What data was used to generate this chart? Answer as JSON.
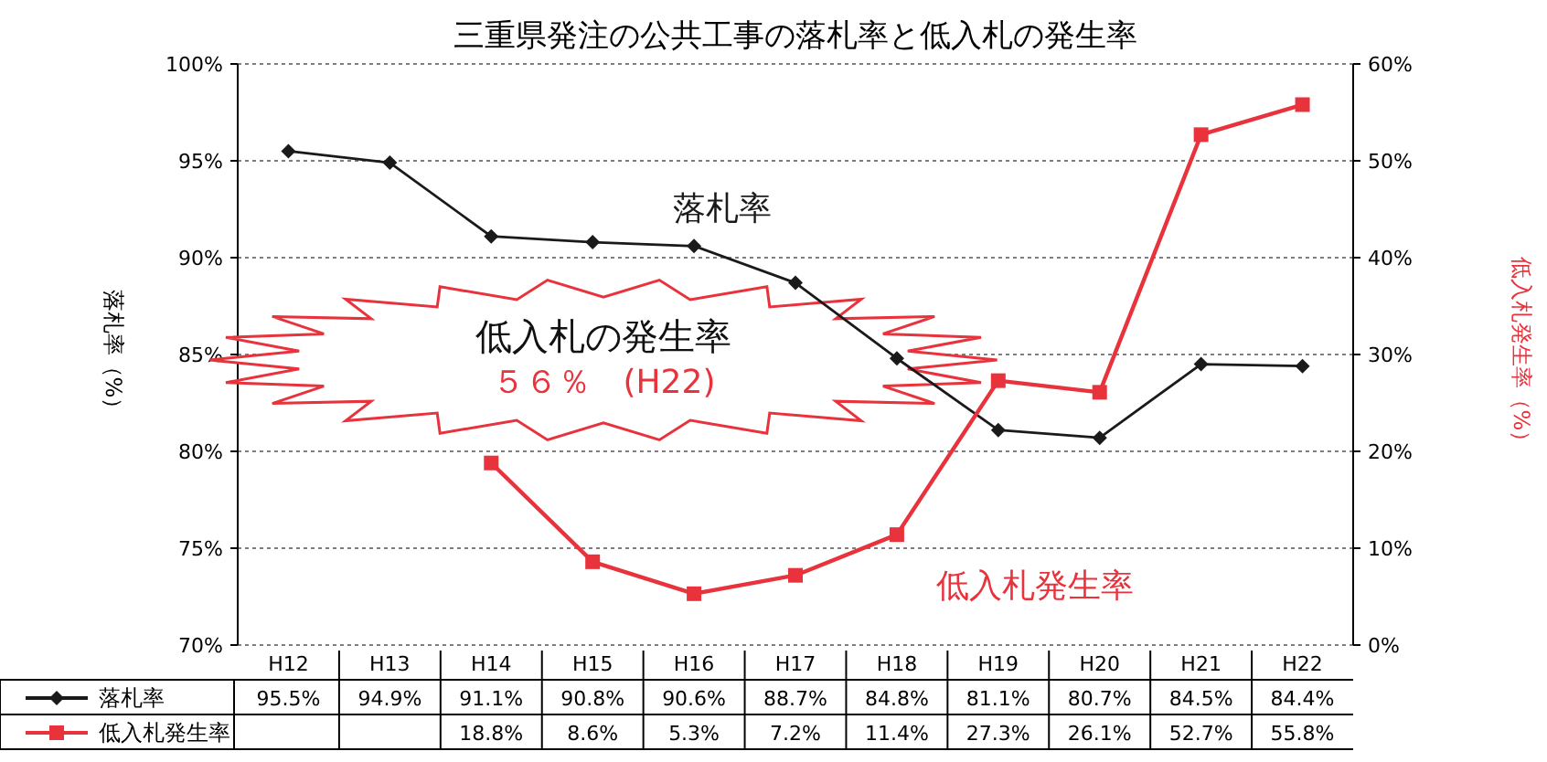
{
  "chart_data": {
    "type": "line",
    "title": "三重県発注の公共工事の落札率と低入札の発生率",
    "ylabel": "落札率（%）",
    "y2label": "低入札発生率（%）",
    "annotations": [
      "低入札の発生率",
      "５６％　(H22)"
    ],
    "categories": [
      "H12",
      "H13",
      "H14",
      "H15",
      "H16",
      "H17",
      "H18",
      "H19",
      "H20",
      "H21",
      "H22"
    ],
    "series": [
      {
        "name": "落札率",
        "color": "#1a1a1a",
        "marker": "diamond",
        "values": [
          95.5,
          94.9,
          91.1,
          90.8,
          90.6,
          88.7,
          84.8,
          81.1,
          80.7,
          84.5,
          84.4
        ],
        "value_labels": [
          "95.5%",
          "94.9%",
          "91.1%",
          "90.8%",
          "90.6%",
          "88.7%",
          "84.8%",
          "81.1%",
          "80.7%",
          "84.5%",
          "84.4%"
        ]
      },
      {
        "name": "低入札発生率",
        "color": "#e8323c",
        "marker": "square",
        "axis": "y2",
        "values": [
          null,
          null,
          18.8,
          8.6,
          5.3,
          7.2,
          11.4,
          27.3,
          26.1,
          52.7,
          55.8
        ],
        "value_labels": [
          null,
          null,
          "18.8%",
          "8.6%",
          "5.3%",
          "7.2%",
          "11.4%",
          "27.3%",
          "26.1%",
          "52.7%",
          "55.8%"
        ]
      }
    ],
    "ylim": [
      70,
      100
    ],
    "yticks": [
      {
        "value": 70,
        "label": "70%"
      },
      {
        "value": 75,
        "label": "75%"
      },
      {
        "value": 80,
        "label": "80%"
      },
      {
        "value": 85,
        "label": "85%"
      },
      {
        "value": 90,
        "label": "90%"
      },
      {
        "value": 95,
        "label": "95%"
      },
      {
        "value": 100,
        "label": "100%"
      }
    ],
    "y2lim": [
      0,
      60
    ],
    "y2ticks": [
      {
        "value": 0,
        "label": "0%"
      },
      {
        "value": 10,
        "label": "10%"
      },
      {
        "value": 20,
        "label": "20%"
      },
      {
        "value": 30,
        "label": "30%"
      },
      {
        "value": 40,
        "label": "40%"
      },
      {
        "value": 50,
        "label": "50%"
      },
      {
        "value": 60,
        "label": "60%"
      }
    ],
    "grid": "y",
    "legend": "bottom",
    "line_style": "solid"
  }
}
